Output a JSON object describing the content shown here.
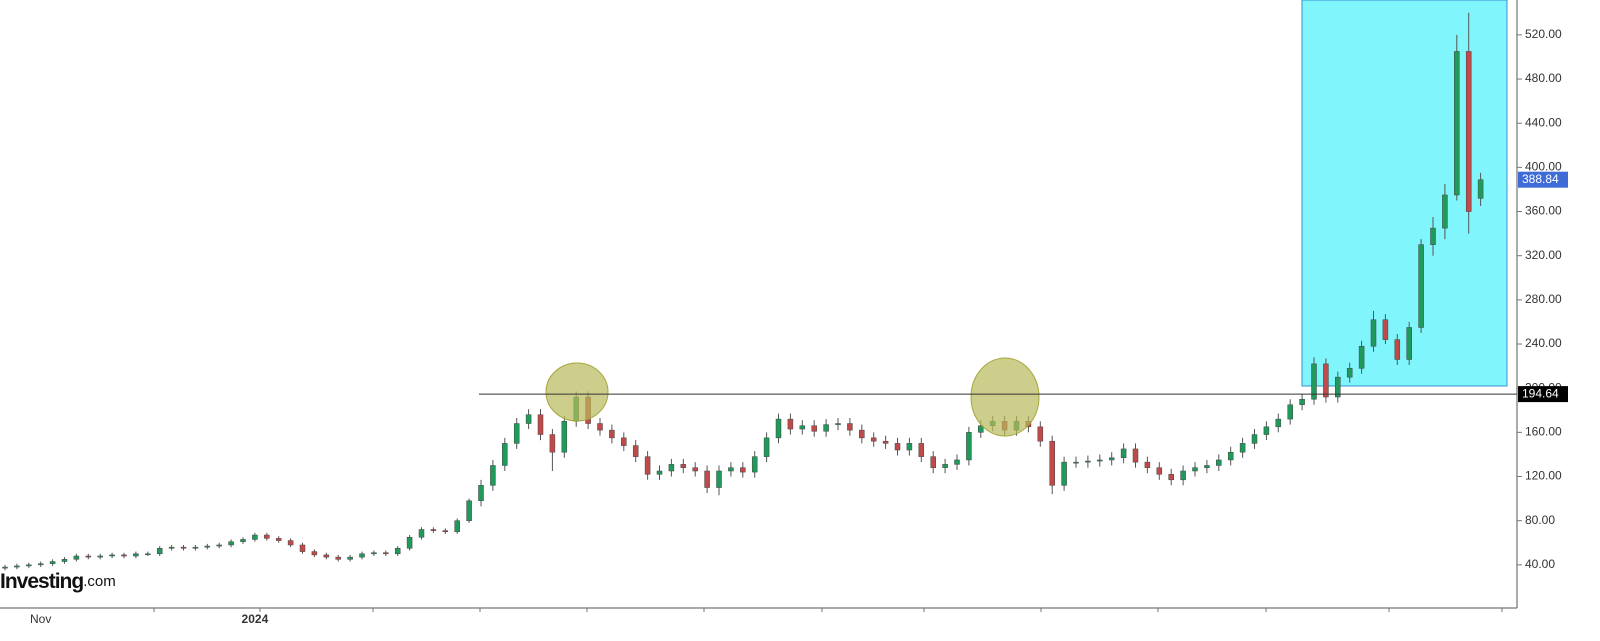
{
  "chart_data": {
    "type": "candlestick",
    "logo": {
      "name": "Investing",
      "suffix": ".com"
    },
    "categories": [
      null,
      null,
      null,
      "Nov",
      null,
      null,
      null,
      null,
      null,
      null,
      null,
      null,
      null,
      null,
      null,
      null,
      null,
      null,
      null,
      null,
      null,
      "2024",
      null,
      null,
      null,
      null,
      null,
      null,
      null,
      null,
      null,
      null,
      null,
      null,
      null,
      null,
      null,
      null,
      null,
      null,
      null,
      null,
      null,
      null,
      null,
      null,
      null,
      null,
      null,
      null,
      null,
      null,
      null,
      null,
      null,
      null,
      null,
      null,
      null,
      null,
      null,
      null,
      null,
      null,
      null,
      null,
      null,
      null,
      null,
      null,
      null,
      null,
      null,
      null,
      null,
      null,
      null,
      null,
      null,
      null,
      null,
      null,
      null,
      null,
      null,
      null,
      null,
      null,
      null,
      null,
      null,
      null,
      null,
      null,
      null,
      null,
      null,
      null,
      null,
      null,
      null,
      null,
      null,
      null,
      null,
      null,
      null,
      null,
      null,
      null,
      null,
      null,
      null,
      null,
      null,
      null,
      null,
      null,
      null,
      null,
      null,
      null,
      null,
      null,
      null
    ],
    "open": [
      37,
      38,
      39,
      40,
      41,
      43,
      45,
      48,
      47,
      48,
      49,
      48,
      50,
      50,
      55,
      56,
      55,
      56,
      57,
      58,
      61,
      63,
      67,
      64,
      62,
      58,
      52,
      49,
      47,
      45,
      47,
      50,
      51,
      50,
      55,
      65,
      72,
      71,
      70,
      80,
      98,
      112,
      130,
      150,
      168,
      176,
      158,
      142,
      170,
      192,
      168,
      162,
      155,
      148,
      138,
      122,
      125,
      131,
      128,
      125,
      110,
      125,
      128,
      124,
      138,
      155,
      172,
      163,
      166,
      161,
      167,
      168,
      162,
      155,
      152,
      150,
      144,
      150,
      138,
      128,
      131,
      135,
      160,
      166,
      170,
      162,
      170,
      165,
      152,
      112,
      133,
      133,
      134,
      135,
      137,
      145,
      133,
      128,
      122,
      117,
      125,
      128,
      130,
      135,
      142,
      150,
      158,
      165,
      172,
      185,
      190,
      222,
      192,
      210,
      218,
      238,
      262,
      244,
      226,
      255,
      330,
      345,
      375,
      505,
      372
    ],
    "high": [
      40,
      41,
      42,
      43,
      45,
      47,
      50,
      50,
      50,
      51,
      51,
      52,
      52,
      57,
      58,
      58,
      58,
      59,
      60,
      63,
      65,
      69,
      69,
      66,
      64,
      60,
      54,
      51,
      49,
      49,
      52,
      53,
      53,
      57,
      67,
      74,
      74,
      73,
      82,
      100,
      117,
      135,
      155,
      173,
      181,
      181,
      163,
      175,
      197,
      197,
      173,
      167,
      160,
      153,
      143,
      130,
      136,
      136,
      133,
      130,
      130,
      133,
      133,
      143,
      160,
      177,
      177,
      171,
      171,
      172,
      173,
      173,
      167,
      160,
      157,
      155,
      155,
      155,
      143,
      136,
      140,
      165,
      171,
      175,
      175,
      175,
      175,
      170,
      157,
      138,
      138,
      139,
      140,
      142,
      150,
      150,
      138,
      133,
      127,
      130,
      133,
      135,
      140,
      147,
      155,
      163,
      170,
      177,
      190,
      195,
      228,
      227,
      215,
      223,
      243,
      270,
      267,
      249,
      260,
      335,
      355,
      385,
      520,
      540,
      395
    ],
    "low": [
      35,
      36,
      37,
      38,
      39,
      41,
      43,
      45,
      45,
      46,
      46,
      46,
      48,
      48,
      53,
      53,
      53,
      54,
      55,
      56,
      59,
      61,
      62,
      60,
      56,
      50,
      47,
      45,
      43,
      43,
      45,
      48,
      48,
      48,
      53,
      63,
      69,
      68,
      68,
      78,
      93,
      107,
      125,
      145,
      163,
      153,
      125,
      137,
      165,
      163,
      157,
      150,
      143,
      133,
      117,
      117,
      120,
      123,
      120,
      105,
      103,
      120,
      119,
      119,
      133,
      150,
      158,
      158,
      156,
      156,
      162,
      157,
      150,
      147,
      145,
      139,
      139,
      133,
      123,
      123,
      126,
      130,
      155,
      161,
      157,
      157,
      160,
      147,
      104,
      107,
      128,
      128,
      129,
      130,
      132,
      128,
      123,
      117,
      112,
      112,
      120,
      123,
      125,
      130,
      137,
      145,
      153,
      160,
      167,
      180,
      185,
      187,
      187,
      205,
      213,
      233,
      240,
      221,
      221,
      250,
      320,
      335,
      370,
      340,
      365
    ],
    "close": [
      38,
      39,
      40,
      41,
      43,
      45,
      48,
      47,
      48,
      49,
      48,
      50,
      50,
      55,
      56,
      55,
      56,
      57,
      58,
      61,
      63,
      67,
      64,
      62,
      58,
      52,
      49,
      47,
      45,
      47,
      50,
      51,
      50,
      55,
      65,
      72,
      71,
      70,
      80,
      98,
      112,
      130,
      150,
      168,
      176,
      158,
      142,
      170,
      192,
      168,
      162,
      155,
      148,
      138,
      122,
      125,
      131,
      128,
      125,
      110,
      125,
      128,
      124,
      138,
      155,
      172,
      163,
      166,
      161,
      167,
      168,
      162,
      155,
      152,
      150,
      144,
      150,
      138,
      128,
      131,
      135,
      160,
      166,
      170,
      162,
      170,
      165,
      152,
      112,
      133,
      133,
      134,
      135,
      137,
      145,
      133,
      128,
      122,
      117,
      125,
      128,
      130,
      135,
      142,
      150,
      158,
      165,
      172,
      185,
      190,
      222,
      192,
      210,
      218,
      238,
      262,
      244,
      226,
      255,
      330,
      345,
      375,
      505,
      360,
      388.84
    ],
    "up_color": "#1f9a5b",
    "down_color": "#c04a4a",
    "ylim": [
      0,
      551.6
    ],
    "yticks": [
      {
        "value": 40,
        "label": "40.00"
      },
      {
        "value": 80,
        "label": "80.00"
      },
      {
        "value": 120,
        "label": "120.00"
      },
      {
        "value": 160,
        "label": "160.00"
      },
      {
        "value": 200,
        "label": "200.00"
      },
      {
        "value": 240,
        "label": "240.00"
      },
      {
        "value": 280,
        "label": "280.00"
      },
      {
        "value": 320,
        "label": "320.00"
      },
      {
        "value": 360,
        "label": "360.00"
      },
      {
        "value": 400,
        "label": "400.00"
      },
      {
        "value": 440,
        "label": "440.00"
      },
      {
        "value": 480,
        "label": "480.00"
      },
      {
        "value": 520,
        "label": "520.00"
      }
    ],
    "level": {
      "value": 194.64,
      "label": "194.64"
    },
    "last_price": {
      "value": 388.84,
      "label": "388.84"
    }
  }
}
